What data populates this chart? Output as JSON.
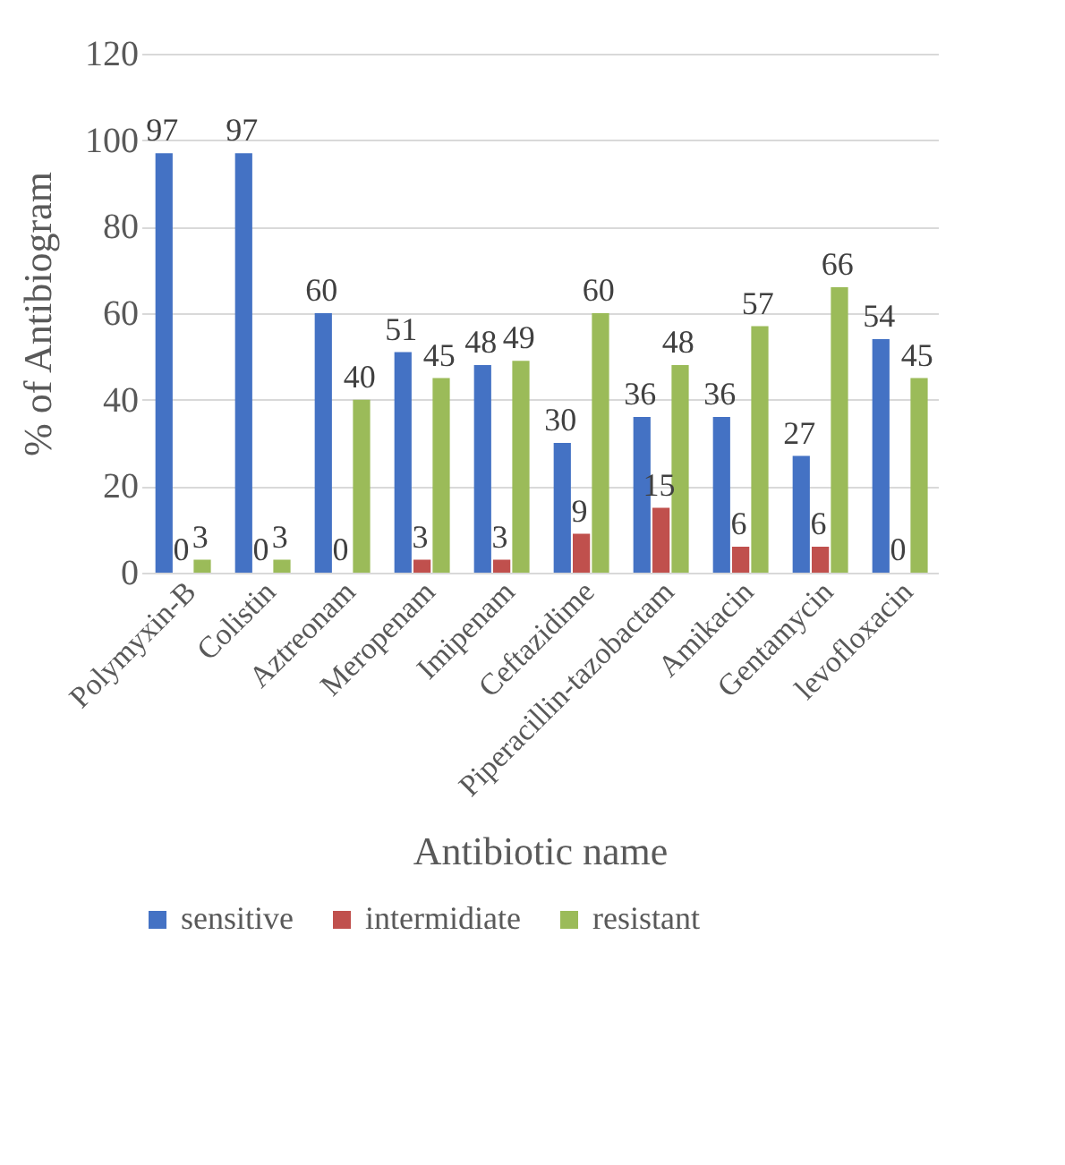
{
  "chart_data": {
    "type": "bar",
    "xlabel": "Antibiotic name",
    "ylabel": "% of Antibiogram",
    "categories": [
      "Polymyxin-B",
      "Colistin",
      "Aztreonam",
      "Meropenam",
      "Imipenam",
      "Ceftazidime",
      "Piperacillin-tazobactam",
      "Amikacin",
      "Gentamycin",
      "levofloxacin"
    ],
    "series": [
      {
        "name": "sensitive",
        "color": "#4472c4",
        "values": [
          97,
          97,
          60,
          51,
          48,
          30,
          36,
          36,
          27,
          54
        ]
      },
      {
        "name": "intermidiate",
        "color": "#c0504d",
        "values": [
          0,
          0,
          0,
          3,
          3,
          9,
          15,
          6,
          6,
          0
        ]
      },
      {
        "name": "resistant",
        "color": "#9bbb59",
        "values": [
          3,
          3,
          40,
          45,
          49,
          60,
          48,
          57,
          66,
          45
        ]
      }
    ],
    "ylim": [
      0,
      120
    ],
    "yticks": [
      0,
      20,
      40,
      60,
      80,
      100,
      120
    ],
    "grid": "y",
    "legend": "bottom",
    "data_labels": true
  }
}
